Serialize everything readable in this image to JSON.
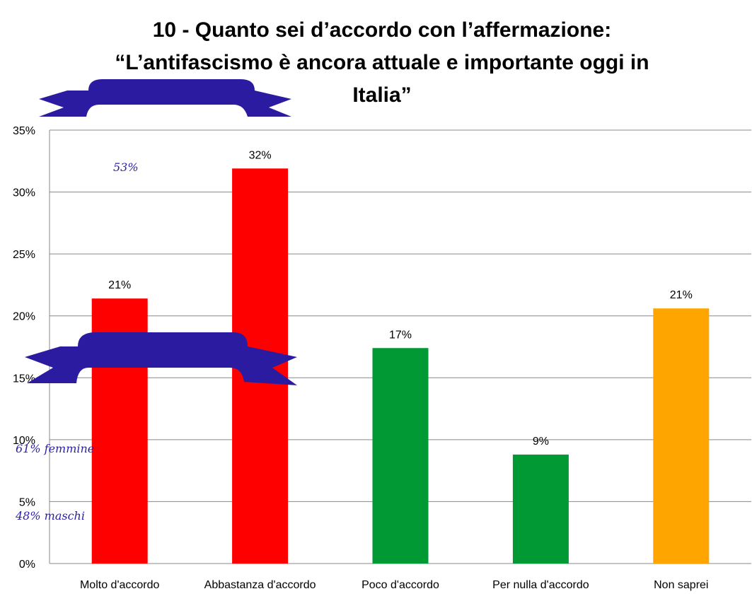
{
  "chart_data": {
    "type": "bar",
    "title": [
      "10 - Quanto sei d’accordo con l’affermazione:",
      "“L’antifascismo è ancora attuale e importante oggi in",
      "Italia”"
    ],
    "categories": [
      "Molto d'accordo",
      "Abbastanza d'accordo",
      "Poco d'accordo",
      "Per nulla d'accordo",
      "Non saprei"
    ],
    "values": [
      21.4,
      31.9,
      17.4,
      8.8,
      20.6
    ],
    "value_labels": [
      "21%",
      "32%",
      "17%",
      "9%",
      "21%"
    ],
    "colors": [
      "#ff0000",
      "#ff0000",
      "#009933",
      "#009933",
      "#ffa500"
    ],
    "ylim": [
      0,
      35
    ],
    "yticks": [
      {
        "value": 0,
        "label": "0%"
      },
      {
        "value": 5,
        "label": "5%"
      },
      {
        "value": 10,
        "label": "10%"
      },
      {
        "value": 15,
        "label": "15%"
      },
      {
        "value": 20,
        "label": "20%"
      },
      {
        "value": 25,
        "label": "25%"
      },
      {
        "value": 30,
        "label": "30%"
      },
      {
        "value": 35,
        "label": "35%"
      }
    ],
    "grid": true,
    "annotations": [
      "53%",
      "61% femmine",
      "48% maschi"
    ]
  }
}
